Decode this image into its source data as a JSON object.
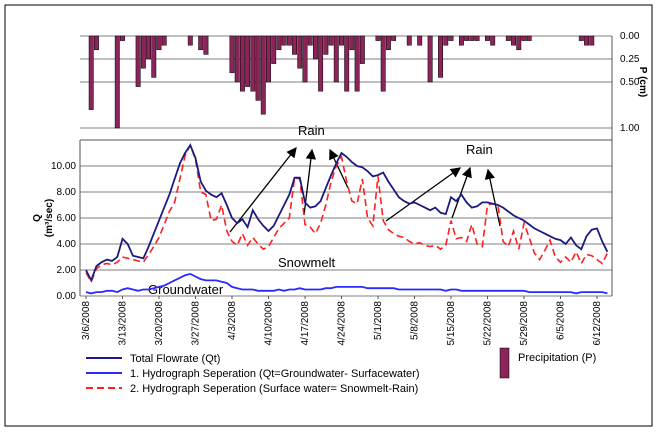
{
  "chart_data": {
    "type": "line",
    "ylabel": "Q",
    "ylabel_sub": "(m³/sec)",
    "y2label": "P (cm)",
    "annotations": [
      "Rain",
      "Rain",
      "Snowmelt",
      "Groundwater"
    ],
    "categories": [
      "3/6/2008",
      null,
      null,
      null,
      null,
      null,
      null,
      "3/13/2008",
      null,
      null,
      null,
      null,
      null,
      null,
      "3/20/2008",
      null,
      null,
      null,
      null,
      null,
      null,
      "3/27/2008",
      null,
      null,
      null,
      null,
      null,
      null,
      "4/3/2008",
      null,
      null,
      null,
      null,
      null,
      null,
      "4/10/2008",
      null,
      null,
      null,
      null,
      null,
      null,
      "4/17/2008",
      null,
      null,
      null,
      null,
      null,
      null,
      "4/24/2008",
      null,
      null,
      null,
      null,
      null,
      null,
      "5/1/2008",
      null,
      null,
      null,
      null,
      null,
      null,
      "5/8/2008",
      null,
      null,
      null,
      null,
      null,
      null,
      "5/15/2008",
      null,
      null,
      null,
      null,
      null,
      null,
      "5/22/2008",
      null,
      null,
      null,
      null,
      null,
      null,
      "5/29/2008",
      null,
      null,
      null,
      null,
      null,
      null,
      "6/5/2008",
      null,
      null,
      null,
      null,
      null,
      null,
      "6/12/2008",
      null,
      null
    ],
    "ylim": [
      0,
      12
    ],
    "yticks": [
      {
        "value": 0,
        "label": "0.00"
      },
      {
        "value": 2,
        "label": "2.00"
      },
      {
        "value": 4,
        "label": "4.00"
      },
      {
        "value": 6,
        "label": "6.00"
      },
      {
        "value": 8,
        "label": "8.00"
      },
      {
        "value": 10,
        "label": "10.00"
      }
    ],
    "y2lim": [
      0,
      1
    ],
    "y2ticks": [
      {
        "value": 0,
        "label": "0.00"
      },
      {
        "value": 0.25,
        "label": "0.25"
      },
      {
        "value": 0.5,
        "label": "0.50"
      },
      {
        "value": 1,
        "label": "1.00"
      }
    ],
    "grid": true,
    "series": [
      {
        "name": "Total Flowrate (Qt)",
        "color": "#1a1a80",
        "dash": false,
        "values": [
          2.0,
          1.2,
          2.3,
          2.6,
          2.8,
          2.7,
          3.0,
          4.4,
          4.0,
          3.1,
          3.0,
          2.9,
          3.8,
          4.8,
          5.8,
          6.8,
          7.8,
          9.0,
          10.2,
          11.0,
          11.6,
          10.6,
          8.8,
          8.1,
          7.8,
          7.6,
          7.9,
          7.0,
          6.0,
          5.6,
          5.9,
          5.3,
          6.6,
          5.9,
          5.4,
          5.0,
          5.4,
          6.2,
          7.0,
          7.8,
          9.1,
          9.1,
          7.2,
          6.8,
          6.9,
          7.3,
          8.3,
          9.3,
          10.2,
          11.0,
          10.7,
          10.3,
          10.0,
          9.9,
          9.6,
          9.2,
          9.3,
          9.5,
          8.8,
          8.2,
          7.6,
          7.3,
          7.1,
          7.2,
          7.0,
          6.8,
          6.6,
          6.8,
          6.4,
          6.3,
          7.6,
          7.3,
          7.8,
          7.2,
          6.8,
          6.9,
          7.2,
          7.2,
          7.1,
          7.0,
          6.8,
          6.5,
          6.2,
          6.0,
          5.8,
          5.5,
          5.2,
          5.0,
          4.8,
          4.6,
          4.4,
          4.3,
          4.0,
          4.5,
          3.9,
          3.6,
          4.6,
          5.1,
          5.2,
          4.2,
          3.4
        ]
      },
      {
        "name": "1. Hydrograph Seperation (Qt=Groundwater- Surfacewater)",
        "color": "#2a2aff",
        "dash": false,
        "values": [
          0.3,
          0.2,
          0.3,
          0.3,
          0.4,
          0.4,
          0.3,
          0.5,
          0.6,
          0.5,
          0.4,
          0.5,
          0.5,
          0.6,
          0.7,
          0.8,
          1.0,
          1.2,
          1.4,
          1.6,
          1.7,
          1.5,
          1.3,
          1.2,
          1.2,
          1.2,
          1.1,
          1.0,
          0.7,
          0.6,
          0.5,
          0.5,
          0.5,
          0.4,
          0.4,
          0.4,
          0.4,
          0.5,
          0.4,
          0.5,
          0.5,
          0.6,
          0.5,
          0.5,
          0.5,
          0.5,
          0.6,
          0.6,
          0.7,
          0.7,
          0.7,
          0.7,
          0.7,
          0.7,
          0.6,
          0.6,
          0.6,
          0.6,
          0.6,
          0.6,
          0.5,
          0.5,
          0.5,
          0.5,
          0.5,
          0.5,
          0.5,
          0.5,
          0.5,
          0.4,
          0.5,
          0.5,
          0.4,
          0.4,
          0.4,
          0.4,
          0.4,
          0.4,
          0.4,
          0.4,
          0.4,
          0.4,
          0.4,
          0.4,
          0.4,
          0.3,
          0.3,
          0.3,
          0.3,
          0.3,
          0.3,
          0.3,
          0.3,
          0.3,
          0.2,
          0.3,
          0.3,
          0.3,
          0.3,
          0.3,
          0.2
        ]
      },
      {
        "name": "2. Hydrograph Seperation (Surface water= Snowmelt-Rain)",
        "color": "#ff2020",
        "dash": true,
        "values": [
          1.8,
          1.1,
          2.1,
          2.4,
          2.5,
          2.4,
          2.6,
          3.0,
          2.9,
          2.8,
          2.7,
          2.6,
          3.2,
          3.8,
          4.5,
          5.5,
          6.5,
          7.2,
          9.0,
          10.8,
          11.6,
          10.5,
          8.0,
          7.8,
          5.8,
          5.9,
          7.0,
          5.0,
          4.2,
          3.9,
          4.8,
          3.9,
          4.5,
          4.0,
          3.6,
          3.8,
          4.5,
          5.2,
          5.6,
          6.0,
          9.1,
          9.0,
          5.5,
          5.3,
          4.8,
          5.6,
          7.0,
          8.8,
          10.0,
          10.7,
          8.8,
          7.3,
          7.1,
          9.0,
          6.0,
          5.4,
          9.2,
          5.8,
          5.1,
          4.8,
          4.6,
          4.5,
          4.2,
          4.0,
          4.1,
          3.9,
          3.8,
          3.9,
          3.6,
          3.9,
          5.8,
          4.4,
          4.5,
          4.2,
          5.5,
          4.0,
          3.8,
          7.0,
          7.1,
          7.0,
          4.2,
          3.8,
          5.0,
          3.6,
          5.6,
          4.5,
          3.3,
          2.8,
          3.5,
          4.3,
          3.0,
          2.6,
          3.0,
          2.6,
          3.4,
          2.5,
          3.2,
          3.1,
          2.8,
          2.5,
          3.3
        ]
      },
      {
        "name": "Precipitation (P)",
        "type": "bar",
        "axis": "y2",
        "color": "#8b2458",
        "values": [
          0,
          0.8,
          0.15,
          0,
          0,
          0,
          1.0,
          0.05,
          0,
          0,
          0.55,
          0.35,
          0.25,
          0.45,
          0.15,
          0.1,
          0,
          0,
          0,
          0,
          0.1,
          0,
          0.15,
          0.2,
          0,
          0,
          0,
          0,
          0.4,
          0.5,
          0.6,
          0.55,
          0.6,
          0.7,
          0.85,
          0.5,
          0.3,
          0.15,
          0.1,
          0.1,
          0.2,
          0.35,
          0.5,
          0.1,
          0.25,
          0.6,
          0.2,
          0.1,
          0.5,
          0.1,
          0.6,
          0.15,
          0.6,
          0.3,
          0,
          0,
          0.05,
          0.6,
          0.15,
          0.05,
          0,
          0,
          0.1,
          0,
          0.1,
          0,
          0.5,
          0,
          0.45,
          0.1,
          0.05,
          0,
          0.1,
          0.05,
          0.05,
          0.05,
          0,
          0.05,
          0.1,
          0,
          0,
          0.05,
          0.1,
          0.15,
          0.05,
          0.05,
          0,
          0,
          0,
          0,
          0,
          0,
          0,
          0,
          0,
          0.05,
          0.1,
          0.1,
          0,
          0,
          0
        ]
      }
    ]
  }
}
